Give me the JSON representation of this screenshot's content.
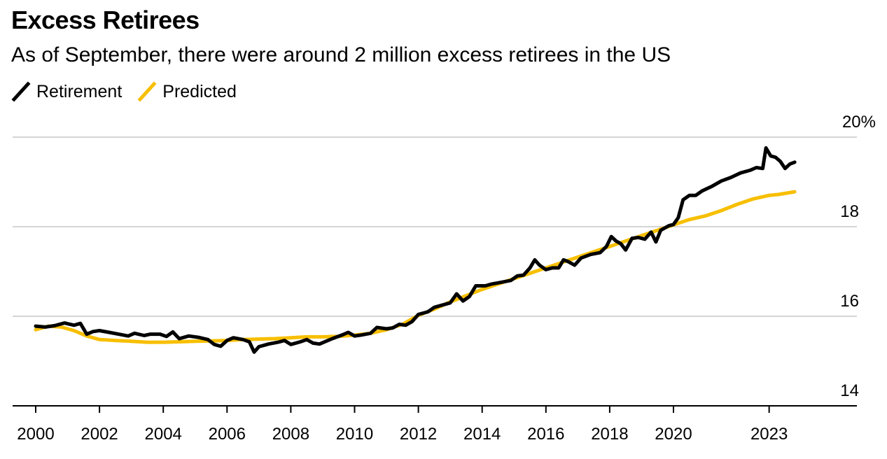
{
  "chart_data": {
    "type": "line",
    "title": "Excess Retirees",
    "subtitle": "As of September, there were around 2 million excess retirees in the US",
    "xlabel": "",
    "ylabel": "",
    "xlim": [
      2000,
      2024.6
    ],
    "ylim": [
      14,
      20
    ],
    "y_ticks": [
      {
        "value": 20,
        "label": "20%"
      },
      {
        "value": 18,
        "label": "18"
      },
      {
        "value": 16,
        "label": "16"
      },
      {
        "value": 14,
        "label": "14"
      }
    ],
    "x_ticks": [
      {
        "value": 2000,
        "label": "2000"
      },
      {
        "value": 2002,
        "label": "2002"
      },
      {
        "value": 2004,
        "label": "2004"
      },
      {
        "value": 2006,
        "label": "2006"
      },
      {
        "value": 2008,
        "label": "2008"
      },
      {
        "value": 2010,
        "label": "2010"
      },
      {
        "value": 2012,
        "label": "2012"
      },
      {
        "value": 2014,
        "label": "2014"
      },
      {
        "value": 2016,
        "label": "2016"
      },
      {
        "value": 2018,
        "label": "2018"
      },
      {
        "value": 2020,
        "label": "2020"
      },
      {
        "value": 2023,
        "label": "2023"
      }
    ],
    "grid": true,
    "legend_position": "top-left",
    "series": [
      {
        "name": "Retirement",
        "color": "#000000",
        "points": [
          [
            2000.0,
            15.78
          ],
          [
            2000.3,
            15.76
          ],
          [
            2000.6,
            15.79
          ],
          [
            2000.9,
            15.85
          ],
          [
            2001.2,
            15.8
          ],
          [
            2001.4,
            15.84
          ],
          [
            2001.6,
            15.6
          ],
          [
            2001.8,
            15.66
          ],
          [
            2002.0,
            15.68
          ],
          [
            2002.3,
            15.64
          ],
          [
            2002.6,
            15.6
          ],
          [
            2002.9,
            15.56
          ],
          [
            2003.1,
            15.62
          ],
          [
            2003.4,
            15.57
          ],
          [
            2003.6,
            15.6
          ],
          [
            2003.9,
            15.6
          ],
          [
            2004.1,
            15.55
          ],
          [
            2004.3,
            15.65
          ],
          [
            2004.5,
            15.5
          ],
          [
            2004.8,
            15.56
          ],
          [
            2005.1,
            15.53
          ],
          [
            2005.4,
            15.48
          ],
          [
            2005.6,
            15.37
          ],
          [
            2005.8,
            15.33
          ],
          [
            2006.0,
            15.46
          ],
          [
            2006.2,
            15.52
          ],
          [
            2006.5,
            15.48
          ],
          [
            2006.7,
            15.43
          ],
          [
            2006.85,
            15.2
          ],
          [
            2007.0,
            15.32
          ],
          [
            2007.3,
            15.38
          ],
          [
            2007.6,
            15.42
          ],
          [
            2007.8,
            15.46
          ],
          [
            2008.0,
            15.37
          ],
          [
            2008.3,
            15.43
          ],
          [
            2008.5,
            15.48
          ],
          [
            2008.7,
            15.4
          ],
          [
            2008.9,
            15.38
          ],
          [
            2009.1,
            15.44
          ],
          [
            2009.3,
            15.5
          ],
          [
            2009.6,
            15.58
          ],
          [
            2009.8,
            15.64
          ],
          [
            2010.0,
            15.56
          ],
          [
            2010.2,
            15.58
          ],
          [
            2010.5,
            15.62
          ],
          [
            2010.7,
            15.75
          ],
          [
            2011.0,
            15.72
          ],
          [
            2011.2,
            15.74
          ],
          [
            2011.4,
            15.82
          ],
          [
            2011.6,
            15.8
          ],
          [
            2011.8,
            15.88
          ],
          [
            2012.0,
            16.04
          ],
          [
            2012.3,
            16.1
          ],
          [
            2012.5,
            16.2
          ],
          [
            2012.8,
            16.26
          ],
          [
            2013.0,
            16.3
          ],
          [
            2013.2,
            16.5
          ],
          [
            2013.4,
            16.34
          ],
          [
            2013.6,
            16.44
          ],
          [
            2013.8,
            16.68
          ],
          [
            2014.1,
            16.68
          ],
          [
            2014.3,
            16.72
          ],
          [
            2014.6,
            16.76
          ],
          [
            2014.9,
            16.8
          ],
          [
            2015.1,
            16.9
          ],
          [
            2015.3,
            16.92
          ],
          [
            2015.5,
            17.08
          ],
          [
            2015.65,
            17.26
          ],
          [
            2015.8,
            17.14
          ],
          [
            2016.0,
            17.04
          ],
          [
            2016.2,
            17.08
          ],
          [
            2016.4,
            17.08
          ],
          [
            2016.55,
            17.26
          ],
          [
            2016.7,
            17.22
          ],
          [
            2016.9,
            17.14
          ],
          [
            2017.1,
            17.3
          ],
          [
            2017.4,
            17.38
          ],
          [
            2017.7,
            17.42
          ],
          [
            2017.9,
            17.56
          ],
          [
            2018.05,
            17.78
          ],
          [
            2018.2,
            17.68
          ],
          [
            2018.35,
            17.62
          ],
          [
            2018.5,
            17.48
          ],
          [
            2018.7,
            17.74
          ],
          [
            2018.9,
            17.76
          ],
          [
            2019.1,
            17.72
          ],
          [
            2019.3,
            17.88
          ],
          [
            2019.45,
            17.66
          ],
          [
            2019.6,
            17.92
          ],
          [
            2019.85,
            18.02
          ],
          [
            2020.0,
            18.05
          ],
          [
            2020.15,
            18.2
          ],
          [
            2020.3,
            18.6
          ],
          [
            2020.5,
            18.7
          ],
          [
            2020.7,
            18.7
          ],
          [
            2020.9,
            18.8
          ],
          [
            2021.2,
            18.9
          ],
          [
            2021.5,
            19.02
          ],
          [
            2021.8,
            19.1
          ],
          [
            2022.1,
            19.2
          ],
          [
            2022.4,
            19.26
          ],
          [
            2022.6,
            19.32
          ],
          [
            2022.8,
            19.3
          ],
          [
            2022.9,
            19.76
          ],
          [
            2023.05,
            19.58
          ],
          [
            2023.2,
            19.55
          ],
          [
            2023.35,
            19.46
          ],
          [
            2023.5,
            19.3
          ],
          [
            2023.65,
            19.4
          ],
          [
            2023.8,
            19.44
          ]
        ]
      },
      {
        "name": "Predicted",
        "color": "#f7bf00",
        "points": [
          [
            2000.0,
            15.7
          ],
          [
            2000.4,
            15.78
          ],
          [
            2000.8,
            15.76
          ],
          [
            2001.2,
            15.68
          ],
          [
            2001.6,
            15.56
          ],
          [
            2002.0,
            15.48
          ],
          [
            2002.5,
            15.46
          ],
          [
            2003.0,
            15.44
          ],
          [
            2003.5,
            15.42
          ],
          [
            2004.0,
            15.42
          ],
          [
            2004.5,
            15.43
          ],
          [
            2005.0,
            15.44
          ],
          [
            2005.5,
            15.45
          ],
          [
            2006.0,
            15.46
          ],
          [
            2006.5,
            15.48
          ],
          [
            2007.0,
            15.49
          ],
          [
            2007.5,
            15.5
          ],
          [
            2008.0,
            15.52
          ],
          [
            2008.5,
            15.54
          ],
          [
            2009.0,
            15.54
          ],
          [
            2009.5,
            15.55
          ],
          [
            2010.0,
            15.58
          ],
          [
            2010.5,
            15.62
          ],
          [
            2011.0,
            15.7
          ],
          [
            2011.5,
            15.82
          ],
          [
            2012.0,
            16.02
          ],
          [
            2012.5,
            16.16
          ],
          [
            2013.0,
            16.32
          ],
          [
            2013.5,
            16.46
          ],
          [
            2014.0,
            16.6
          ],
          [
            2014.5,
            16.72
          ],
          [
            2015.0,
            16.84
          ],
          [
            2015.5,
            16.96
          ],
          [
            2016.0,
            17.08
          ],
          [
            2016.5,
            17.2
          ],
          [
            2017.0,
            17.32
          ],
          [
            2017.5,
            17.44
          ],
          [
            2018.0,
            17.56
          ],
          [
            2018.5,
            17.68
          ],
          [
            2019.0,
            17.8
          ],
          [
            2019.5,
            17.92
          ],
          [
            2020.0,
            18.04
          ],
          [
            2020.5,
            18.16
          ],
          [
            2021.0,
            18.24
          ],
          [
            2021.5,
            18.36
          ],
          [
            2022.0,
            18.5
          ],
          [
            2022.5,
            18.62
          ],
          [
            2023.0,
            18.7
          ],
          [
            2023.3,
            18.72
          ],
          [
            2023.8,
            18.78
          ]
        ]
      }
    ]
  }
}
